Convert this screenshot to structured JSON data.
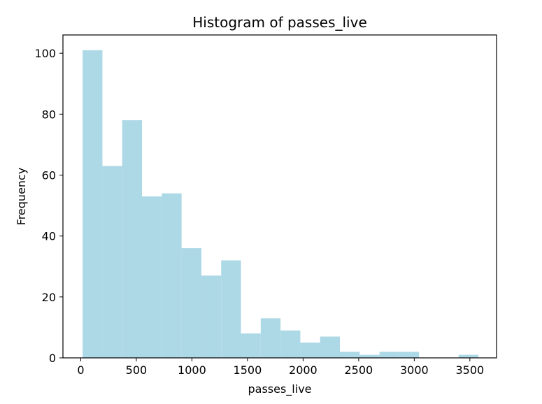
{
  "chart_data": {
    "type": "bar",
    "subtype": "histogram",
    "title": "Histogram of passes_live",
    "xlabel": "passes_live",
    "ylabel": "Frequency",
    "bar_color": "#add8e6",
    "grid": false,
    "xlim": [
      -160,
      3740
    ],
    "ylim": [
      0,
      106
    ],
    "xticks": [
      0,
      500,
      1000,
      1500,
      2000,
      2500,
      3000,
      3500
    ],
    "yticks": [
      0,
      20,
      40,
      60,
      80,
      100
    ],
    "bins": [
      {
        "x0": 17,
        "x1": 195,
        "count": 101
      },
      {
        "x0": 195,
        "x1": 373,
        "count": 63
      },
      {
        "x0": 373,
        "x1": 551,
        "count": 78
      },
      {
        "x0": 551,
        "x1": 729,
        "count": 53
      },
      {
        "x0": 729,
        "x1": 907,
        "count": 54
      },
      {
        "x0": 907,
        "x1": 1085,
        "count": 36
      },
      {
        "x0": 1085,
        "x1": 1263,
        "count": 27
      },
      {
        "x0": 1263,
        "x1": 1441,
        "count": 32
      },
      {
        "x0": 1441,
        "x1": 1619,
        "count": 8
      },
      {
        "x0": 1619,
        "x1": 1797,
        "count": 13
      },
      {
        "x0": 1797,
        "x1": 1975,
        "count": 9
      },
      {
        "x0": 1975,
        "x1": 2153,
        "count": 5
      },
      {
        "x0": 2153,
        "x1": 2331,
        "count": 7
      },
      {
        "x0": 2331,
        "x1": 2509,
        "count": 2
      },
      {
        "x0": 2509,
        "x1": 2687,
        "count": 1
      },
      {
        "x0": 2687,
        "x1": 2865,
        "count": 2
      },
      {
        "x0": 2865,
        "x1": 3043,
        "count": 2
      },
      {
        "x0": 3043,
        "x1": 3221,
        "count": 0
      },
      {
        "x0": 3221,
        "x1": 3399,
        "count": 0
      },
      {
        "x0": 3399,
        "x1": 3577,
        "count": 1
      }
    ]
  }
}
